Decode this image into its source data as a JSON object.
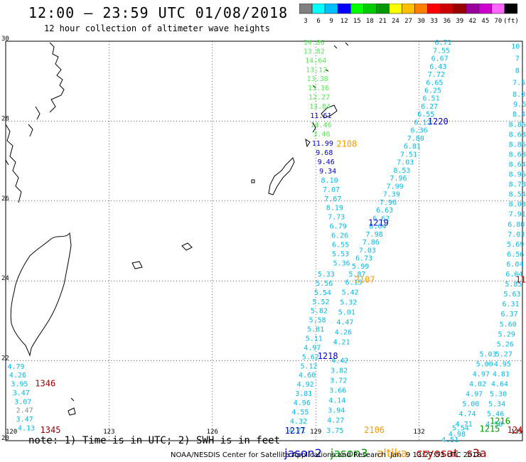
{
  "header": {
    "title": "12:00 — 23:59 UTC 01/08/2018",
    "subtitle": "12 hour collection of altimeter wave heights"
  },
  "legend": {
    "colors": [
      "#808080",
      "#00ffff",
      "#00bfff",
      "#0000ff",
      "#00ff00",
      "#00cc00",
      "#009900",
      "#ffff00",
      "#ffbf00",
      "#ff8000",
      "#ff0000",
      "#cc0000",
      "#990000",
      "#990099",
      "#cc00cc",
      "#ff66ff",
      "#000000"
    ],
    "labels": [
      "3",
      "6",
      "9",
      "12",
      "15",
      "18",
      "21",
      "24",
      "27",
      "30",
      "33",
      "36",
      "39",
      "42",
      "45",
      "70",
      "(ft)"
    ]
  },
  "footer": {
    "note": "note: 1) Time is in UTC; 2) SWH is in feet",
    "satellites": [
      {
        "name": "jason2",
        "color": "#0000cc"
      },
      {
        "name": "jason3",
        "color": "#009900"
      },
      {
        "name": "altika",
        "color": "#ff9900"
      },
      {
        "name": "cryosat",
        "color": "#cc0000"
      },
      {
        "name": "s3a",
        "color": "#990000"
      }
    ],
    "credit": "NOAA/NESDIS Center for Satellite Applications and Research  Jan  9 13:27:53 UTC 2018"
  },
  "chart_data": {
    "type": "scatter",
    "xlim": [
      120,
      135
    ],
    "ylim": [
      20,
      30
    ],
    "xticks": [
      "120",
      "123",
      "126",
      "129",
      "132",
      "135"
    ],
    "yticks": [
      "20",
      "22",
      "24",
      "26",
      "28",
      "30"
    ],
    "grid": true,
    "series": [
      {
        "name": "jason3",
        "color": "#55ee55",
        "points": [
          {
            "x": 128.95,
            "y": 29.91,
            "v": "14.86"
          },
          {
            "x": 128.95,
            "y": 29.69,
            "v": "13.82"
          },
          {
            "x": 129.0,
            "y": 29.46,
            "v": "14.64"
          },
          {
            "x": 129.02,
            "y": 29.23,
            "v": "13.12"
          },
          {
            "x": 129.05,
            "y": 29.0,
            "v": "13.38"
          },
          {
            "x": 129.08,
            "y": 28.77,
            "v": "13.16"
          },
          {
            "x": 129.1,
            "y": 28.54,
            "v": "12.27"
          },
          {
            "x": 129.12,
            "y": 28.31,
            "v": "13.84"
          },
          {
            "x": 129.15,
            "y": 27.85,
            "v": "14.46"
          },
          {
            "x": 129.17,
            "y": 27.62,
            "v": "3.46"
          }
        ]
      },
      {
        "name": "jason2-1219",
        "color": "#0000cc",
        "points": [
          {
            "x": 129.15,
            "y": 28.08,
            "v": "11.61"
          },
          {
            "x": 129.2,
            "y": 27.38,
            "v": "11.99"
          },
          {
            "x": 129.25,
            "y": 27.15,
            "v": "9.68"
          },
          {
            "x": 129.3,
            "y": 26.92,
            "v": "9.46"
          },
          {
            "x": 129.35,
            "y": 26.69,
            "v": "9.34"
          }
        ]
      },
      {
        "name": "jason2-1219-low",
        "color": "#00bbee",
        "points": [
          {
            "x": 129.4,
            "y": 26.46,
            "v": "8.10"
          },
          {
            "x": 129.45,
            "y": 26.23,
            "v": "7.07"
          },
          {
            "x": 129.5,
            "y": 26.0,
            "v": "7.67"
          },
          {
            "x": 129.55,
            "y": 25.77,
            "v": "8.19"
          },
          {
            "x": 129.6,
            "y": 25.54,
            "v": "7.73"
          },
          {
            "x": 129.65,
            "y": 25.31,
            "v": "6.79"
          },
          {
            "x": 129.7,
            "y": 25.08,
            "v": "6.26"
          },
          {
            "x": 129.72,
            "y": 24.85,
            "v": "6.55"
          },
          {
            "x": 129.72,
            "y": 24.62,
            "v": "5.53"
          },
          {
            "x": 129.75,
            "y": 24.39,
            "v": "5.36"
          }
        ]
      },
      {
        "name": "jason3-2107",
        "color": "#00bbee",
        "points": [
          {
            "x": 132.7,
            "y": 29.91,
            "v": "6.71"
          },
          {
            "x": 132.65,
            "y": 29.71,
            "v": "7.55"
          },
          {
            "x": 132.6,
            "y": 29.51,
            "v": "6.67"
          },
          {
            "x": 132.55,
            "y": 29.31,
            "v": "6.43"
          },
          {
            "x": 132.5,
            "y": 29.11,
            "v": "7.72"
          },
          {
            "x": 132.45,
            "y": 28.91,
            "v": "6.65"
          },
          {
            "x": 132.4,
            "y": 28.71,
            "v": "6.25"
          },
          {
            "x": 132.35,
            "y": 28.51,
            "v": "6.51"
          },
          {
            "x": 132.3,
            "y": 28.31,
            "v": "6.27"
          },
          {
            "x": 132.2,
            "y": 28.11,
            "v": "6.55"
          },
          {
            "x": 132.1,
            "y": 27.91,
            "v": "6.12"
          },
          {
            "x": 132.0,
            "y": 27.71,
            "v": "6.36"
          },
          {
            "x": 131.9,
            "y": 27.51,
            "v": "7.80"
          },
          {
            "x": 131.8,
            "y": 27.31,
            "v": "6.81"
          },
          {
            "x": 131.7,
            "y": 27.11,
            "v": "7.51"
          },
          {
            "x": 131.6,
            "y": 26.91,
            "v": "7.03"
          },
          {
            "x": 131.5,
            "y": 26.71,
            "v": "8.53"
          },
          {
            "x": 131.4,
            "y": 26.51,
            "v": "7.96"
          },
          {
            "x": 131.3,
            "y": 26.31,
            "v": "7.99"
          },
          {
            "x": 131.2,
            "y": 26.11,
            "v": "7.39"
          },
          {
            "x": 131.1,
            "y": 25.91,
            "v": "7.96"
          },
          {
            "x": 131.0,
            "y": 25.71,
            "v": "6.63"
          },
          {
            "x": 130.9,
            "y": 25.51,
            "v": "6.62"
          },
          {
            "x": 130.8,
            "y": 25.31,
            "v": "8.64"
          },
          {
            "x": 130.7,
            "y": 25.11,
            "v": "7.98"
          },
          {
            "x": 130.6,
            "y": 24.91,
            "v": "7.86"
          },
          {
            "x": 130.5,
            "y": 24.71,
            "v": "7.03"
          },
          {
            "x": 130.4,
            "y": 24.51,
            "v": "6.73"
          },
          {
            "x": 130.3,
            "y": 24.31,
            "v": "5.99"
          },
          {
            "x": 130.2,
            "y": 24.11,
            "v": "5.87"
          },
          {
            "x": 130.1,
            "y": 23.91,
            "v": "6.15"
          },
          {
            "x": 130.0,
            "y": 23.66,
            "v": "5.42"
          },
          {
            "x": 129.95,
            "y": 23.41,
            "v": "5.32"
          },
          {
            "x": 129.9,
            "y": 23.16,
            "v": "5.01"
          },
          {
            "x": 129.85,
            "y": 22.91,
            "v": "4.47"
          },
          {
            "x": 129.8,
            "y": 22.66,
            "v": "4.26"
          },
          {
            "x": 129.75,
            "y": 22.41,
            "v": "4.21"
          }
        ]
      },
      {
        "name": "jason2-1218",
        "color": "#00bbee",
        "points": [
          {
            "x": 129.3,
            "y": 24.11,
            "v": "5.33"
          },
          {
            "x": 129.25,
            "y": 23.88,
            "v": "5.56"
          },
          {
            "x": 129.2,
            "y": 23.65,
            "v": "5.54"
          },
          {
            "x": 129.15,
            "y": 23.42,
            "v": "5.52"
          },
          {
            "x": 129.1,
            "y": 23.19,
            "v": "5.82"
          },
          {
            "x": 129.05,
            "y": 22.96,
            "v": "5.58"
          },
          {
            "x": 129.0,
            "y": 22.73,
            "v": "5.81"
          },
          {
            "x": 128.95,
            "y": 22.5,
            "v": "5.11"
          },
          {
            "x": 128.9,
            "y": 22.27,
            "v": "4.97"
          },
          {
            "x": 128.85,
            "y": 22.04,
            "v": "5.62"
          },
          {
            "x": 128.8,
            "y": 21.81,
            "v": "5.12"
          },
          {
            "x": 128.75,
            "y": 21.58,
            "v": "4.60"
          },
          {
            "x": 128.7,
            "y": 21.35,
            "v": "4.92"
          },
          {
            "x": 128.65,
            "y": 21.12,
            "v": "3.81"
          },
          {
            "x": 128.6,
            "y": 20.89,
            "v": "4.96"
          },
          {
            "x": 128.55,
            "y": 20.66,
            "v": "4.55"
          },
          {
            "x": 128.5,
            "y": 20.43,
            "v": "4.32"
          },
          {
            "x": 128.45,
            "y": 20.2,
            "v": "4.71"
          }
        ]
      },
      {
        "name": "altika-2106",
        "color": "#00bbee",
        "points": [
          {
            "x": 129.7,
            "y": 21.95,
            "v": "4.42"
          },
          {
            "x": 129.68,
            "y": 21.7,
            "v": "3.82"
          },
          {
            "x": 129.66,
            "y": 21.45,
            "v": "3.72"
          },
          {
            "x": 129.64,
            "y": 21.2,
            "v": "3.66"
          },
          {
            "x": 129.62,
            "y": 20.95,
            "v": "4.14"
          },
          {
            "x": 129.6,
            "y": 20.7,
            "v": "3.94"
          },
          {
            "x": 129.58,
            "y": 20.45,
            "v": "4.27"
          },
          {
            "x": 129.56,
            "y": 20.2,
            "v": "3.75"
          }
        ]
      },
      {
        "name": "jason2-1220",
        "color": "#00bbee",
        "points": [
          {
            "x": 134.8,
            "y": 29.81,
            "v": "10"
          },
          {
            "x": 134.85,
            "y": 29.51,
            "v": "7"
          },
          {
            "x": 134.85,
            "y": 29.21,
            "v": "8"
          },
          {
            "x": 134.9,
            "y": 28.91,
            "v": "7.5"
          },
          {
            "x": 134.9,
            "y": 28.61,
            "v": "8.0"
          },
          {
            "x": 134.92,
            "y": 28.36,
            "v": "9.6"
          },
          {
            "x": 134.9,
            "y": 28.11,
            "v": "8.4"
          },
          {
            "x": 134.85,
            "y": 27.86,
            "v": "8.86"
          },
          {
            "x": 134.85,
            "y": 27.61,
            "v": "8.63"
          },
          {
            "x": 134.85,
            "y": 27.36,
            "v": "8.85"
          },
          {
            "x": 134.85,
            "y": 27.11,
            "v": "8.63"
          },
          {
            "x": 134.85,
            "y": 26.86,
            "v": "8.64"
          },
          {
            "x": 134.85,
            "y": 26.61,
            "v": "8.95"
          },
          {
            "x": 134.85,
            "y": 26.36,
            "v": "8.78"
          },
          {
            "x": 134.85,
            "y": 26.11,
            "v": "8.54"
          },
          {
            "x": 134.85,
            "y": 25.86,
            "v": "8.03"
          },
          {
            "x": 134.85,
            "y": 25.61,
            "v": "7.91"
          },
          {
            "x": 134.82,
            "y": 25.36,
            "v": "6.80"
          },
          {
            "x": 134.82,
            "y": 25.11,
            "v": "7.03"
          },
          {
            "x": 134.8,
            "y": 24.86,
            "v": "5.69"
          },
          {
            "x": 134.8,
            "y": 24.61,
            "v": "6.56"
          },
          {
            "x": 134.78,
            "y": 24.36,
            "v": "6.04"
          },
          {
            "x": 134.76,
            "y": 24.11,
            "v": "6.04"
          },
          {
            "x": 134.74,
            "y": 23.86,
            "v": "5.85"
          },
          {
            "x": 134.7,
            "y": 23.61,
            "v": "5.63"
          },
          {
            "x": 134.66,
            "y": 23.36,
            "v": "6.31"
          },
          {
            "x": 134.62,
            "y": 23.11,
            "v": "6.37"
          },
          {
            "x": 134.58,
            "y": 22.86,
            "v": "5.60"
          },
          {
            "x": 134.54,
            "y": 22.61,
            "v": "5.29"
          },
          {
            "x": 134.5,
            "y": 22.36,
            "v": "5.26"
          },
          {
            "x": 134.46,
            "y": 22.11,
            "v": "5.27"
          },
          {
            "x": 134.42,
            "y": 21.86,
            "v": "4.95"
          },
          {
            "x": 134.38,
            "y": 21.61,
            "v": "4.81"
          },
          {
            "x": 134.34,
            "y": 21.36,
            "v": "4.64"
          },
          {
            "x": 134.3,
            "y": 21.11,
            "v": "5.30"
          },
          {
            "x": 134.26,
            "y": 20.86,
            "v": "5.34"
          },
          {
            "x": 134.22,
            "y": 20.61,
            "v": "5.46"
          },
          {
            "x": 134.18,
            "y": 20.36,
            "v": "4.58"
          }
        ]
      },
      {
        "name": "jason2-1216",
        "color": "#00bbee",
        "points": [
          {
            "x": 134.0,
            "y": 22.11,
            "v": "5.03"
          },
          {
            "x": 133.9,
            "y": 21.86,
            "v": "5.00"
          },
          {
            "x": 133.8,
            "y": 21.61,
            "v": "4.97"
          },
          {
            "x": 133.7,
            "y": 21.36,
            "v": "4.02"
          },
          {
            "x": 133.6,
            "y": 21.11,
            "v": "4.97"
          },
          {
            "x": 133.5,
            "y": 20.86,
            "v": "5.00"
          },
          {
            "x": 133.4,
            "y": 20.61,
            "v": "4.74"
          },
          {
            "x": 133.3,
            "y": 20.36,
            "v": "4.71"
          },
          {
            "x": 133.2,
            "y": 20.26,
            "v": "5.54"
          },
          {
            "x": 133.1,
            "y": 20.11,
            "v": "4.98"
          },
          {
            "x": 132.9,
            "y": 19.96,
            "v": "4.51"
          }
        ]
      },
      {
        "name": "s3a-1346",
        "color": "#00bbee",
        "points": [
          {
            "x": 120.3,
            "y": 21.8,
            "v": "4.79"
          },
          {
            "x": 120.35,
            "y": 21.58,
            "v": "4.26"
          },
          {
            "x": 120.4,
            "y": 21.36,
            "v": "3.95"
          },
          {
            "x": 120.45,
            "y": 21.14,
            "v": "3.47"
          },
          {
            "x": 120.5,
            "y": 20.92,
            "v": "3.07"
          },
          {
            "x": 120.55,
            "y": 20.48,
            "v": "3.47"
          },
          {
            "x": 120.6,
            "y": 20.26,
            "v": "4.13"
          }
        ]
      },
      {
        "name": "s3a-grey",
        "color": "#888888",
        "points": [
          {
            "x": 120.55,
            "y": 20.7,
            "v": "2.47"
          }
        ]
      }
    ],
    "passes": [
      {
        "label": "1220",
        "x": 132.55,
        "y": 27.92,
        "color": "#0000cc"
      },
      {
        "label": "2108",
        "x": 129.9,
        "y": 27.36,
        "color": "#ff9900"
      },
      {
        "label": "1219",
        "x": 130.82,
        "y": 25.38,
        "color": "#0000cc"
      },
      {
        "label": "2107",
        "x": 130.42,
        "y": 23.96,
        "color": "#ff9900"
      },
      {
        "label": "1218",
        "x": 129.35,
        "y": 22.05,
        "color": "#0000cc"
      },
      {
        "label": "1346",
        "x": 121.15,
        "y": 21.36,
        "color": "#990000"
      },
      {
        "label": "1345",
        "x": 121.3,
        "y": 20.2,
        "color": "#990000"
      },
      {
        "label": "1217",
        "x": 128.4,
        "y": 20.18,
        "color": "#0000cc"
      },
      {
        "label": "2106",
        "x": 130.7,
        "y": 20.2,
        "color": "#ff9900"
      },
      {
        "label": "1216",
        "x": 134.35,
        "y": 20.42,
        "color": "#009900"
      },
      {
        "label": "1215",
        "x": 134.05,
        "y": 20.22,
        "color": "#009900"
      },
      {
        "label": "124",
        "x": 134.78,
        "y": 20.2,
        "color": "#cc0000"
      },
      {
        "label": "11",
        "x": 134.95,
        "y": 23.96,
        "color": "#cc0000"
      }
    ]
  }
}
